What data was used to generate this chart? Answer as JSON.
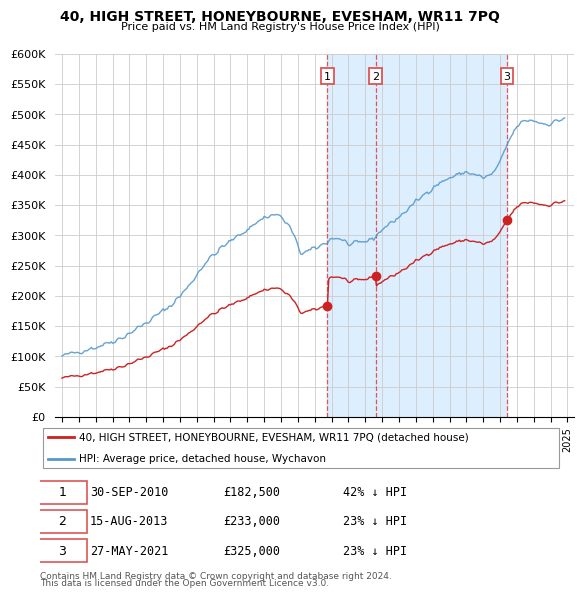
{
  "title": "40, HIGH STREET, HONEYBOURNE, EVESHAM, WR11 7PQ",
  "subtitle": "Price paid vs. HM Land Registry's House Price Index (HPI)",
  "ylabel_ticks": [
    "£0",
    "£50K",
    "£100K",
    "£150K",
    "£200K",
    "£250K",
    "£300K",
    "£350K",
    "£400K",
    "£450K",
    "£500K",
    "£550K",
    "£600K"
  ],
  "ylim": [
    0,
    600000
  ],
  "ytick_vals": [
    0,
    50000,
    100000,
    150000,
    200000,
    250000,
    300000,
    350000,
    400000,
    450000,
    500000,
    550000,
    600000
  ],
  "hpi_color": "#5599cc",
  "price_color": "#cc2222",
  "dashed_line_color": "#dd5555",
  "background_color": "#ffffff",
  "grid_color": "#cccccc",
  "shade_color": "#ddeeff",
  "legend_label_hpi": "HPI: Average price, detached house, Wychavon",
  "legend_label_price": "40, HIGH STREET, HONEYBOURNE, EVESHAM, WR11 7PQ (detached house)",
  "sales": [
    {
      "num": 1,
      "date": "30-SEP-2010",
      "price": 182500,
      "pct": "42% ↓ HPI",
      "x": 2010.75
    },
    {
      "num": 2,
      "date": "15-AUG-2013",
      "price": 233000,
      "pct": "23% ↓ HPI",
      "x": 2013.62
    },
    {
      "num": 3,
      "date": "27-MAY-2021",
      "price": 325000,
      "pct": "23% ↓ HPI",
      "x": 2021.41
    }
  ],
  "footnote1": "Contains HM Land Registry data © Crown copyright and database right 2024.",
  "footnote2": "This data is licensed under the Open Government Licence v3.0.",
  "hpi_anchors_x": [
    1995.0,
    1996.0,
    1997.0,
    1998.5,
    2000.0,
    2001.5,
    2002.5,
    2003.5,
    2004.5,
    2005.5,
    2007.0,
    2007.8,
    2008.5,
    2009.2,
    2009.8,
    2010.5,
    2011.0,
    2011.5,
    2012.0,
    2012.5,
    2013.0,
    2013.5,
    2014.0,
    2015.0,
    2016.0,
    2017.0,
    2018.0,
    2019.0,
    2020.0,
    2020.5,
    2021.0,
    2021.5,
    2022.0,
    2022.5,
    2023.0,
    2023.5,
    2024.0,
    2024.5,
    2024.9
  ],
  "hpi_anchors_y": [
    100000,
    108000,
    115000,
    130000,
    155000,
    185000,
    215000,
    255000,
    280000,
    300000,
    330000,
    335000,
    315000,
    270000,
    275000,
    285000,
    295000,
    295000,
    285000,
    285000,
    290000,
    295000,
    310000,
    330000,
    355000,
    380000,
    395000,
    405000,
    395000,
    400000,
    420000,
    455000,
    480000,
    490000,
    490000,
    485000,
    485000,
    490000,
    495000
  ]
}
